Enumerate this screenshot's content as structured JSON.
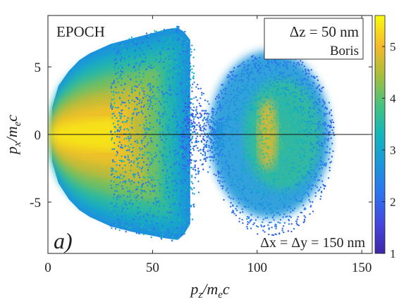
{
  "chart_data": {
    "type": "scatter",
    "subtype": "phase-space density (colored by log density)",
    "code_label": "EPOCH",
    "panel_label": "a)",
    "annotation_top_right": [
      "Δz = 50 nm",
      "Boris"
    ],
    "annotation_bottom_right": "Δx = Δy = 150 nm",
    "xlabel": "p_z/m_e c",
    "ylabel": "p_x/m_e c",
    "xlim": [
      0,
      155
    ],
    "ylim": [
      -8.8,
      8.8
    ],
    "xticks": [
      0,
      50,
      100,
      150
    ],
    "yticks": [
      -5,
      0,
      5
    ],
    "colorbar": {
      "range": [
        1,
        5.6
      ],
      "ticks": [
        1,
        2,
        3,
        4,
        5
      ]
    },
    "reference_line_y": 0,
    "grid": false,
    "colormap": "parula",
    "colors": {
      "low": "#3e26a8",
      "mid": "#13beb8",
      "high": "#f9fb0e",
      "axis": "#222222"
    },
    "regions": [
      {
        "name": "main bunch",
        "x_range": [
          2,
          68
        ],
        "y_range": [
          -7.8,
          7.9
        ],
        "peak_density": 5.6,
        "upper_envelope": [
          [
            2,
            2.0
          ],
          [
            5,
            3.6
          ],
          [
            10,
            4.7
          ],
          [
            15,
            5.5
          ],
          [
            20,
            6.0
          ],
          [
            30,
            6.7
          ],
          [
            40,
            7.1
          ],
          [
            50,
            7.5
          ],
          [
            57,
            7.8
          ],
          [
            62,
            7.9
          ],
          [
            65,
            7.6
          ],
          [
            68,
            7.0
          ]
        ],
        "lower_envelope": [
          [
            2,
            -2.0
          ],
          [
            5,
            -3.6
          ],
          [
            10,
            -4.8
          ],
          [
            15,
            -5.6
          ],
          [
            20,
            -6.1
          ],
          [
            30,
            -6.8
          ],
          [
            40,
            -7.2
          ],
          [
            50,
            -7.5
          ],
          [
            57,
            -7.7
          ],
          [
            62,
            -7.8
          ],
          [
            65,
            -7.4
          ],
          [
            68,
            -6.6
          ]
        ]
      },
      {
        "name": "scattered bridge",
        "x_range": [
          66,
          84
        ],
        "y_range": [
          -3.5,
          4.2
        ],
        "peak_density": 2.3
      },
      {
        "name": "secondary bunch",
        "x_range": [
          78,
          137
        ],
        "y_range": [
          -8.0,
          6.5
        ],
        "center": [
          104,
          0
        ],
        "peak_density": 4.8
      }
    ]
  }
}
